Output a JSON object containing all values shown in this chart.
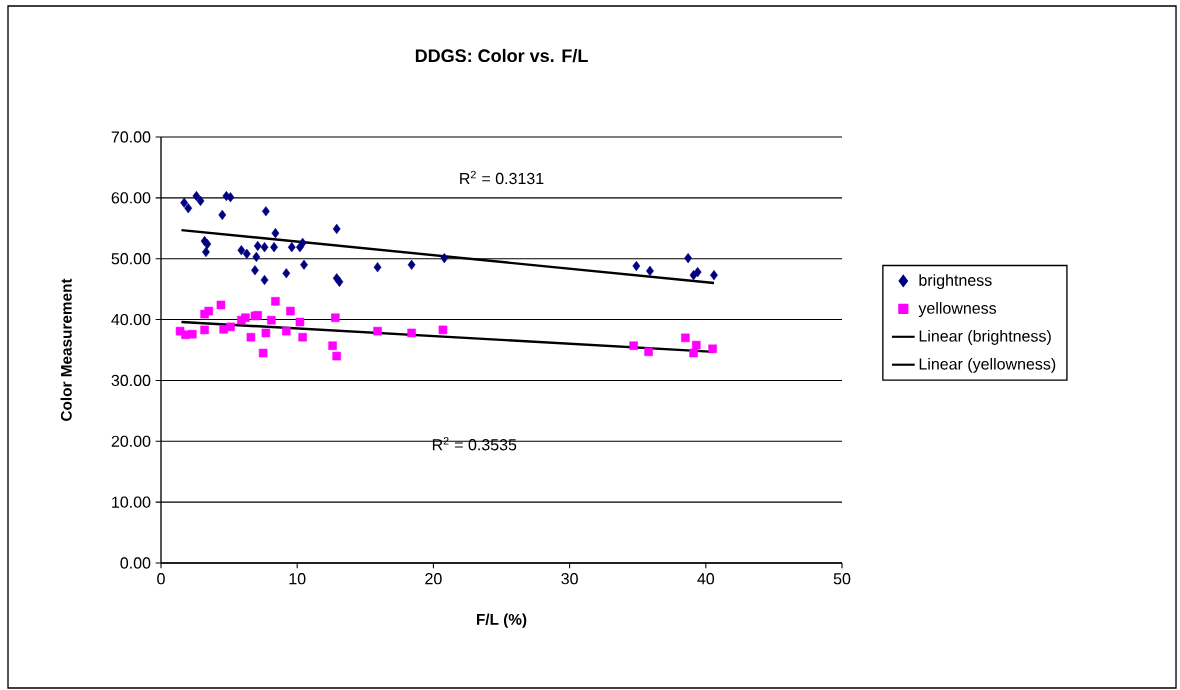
{
  "chart_data": {
    "type": "scatter",
    "title": "DDGS: Color vs. F/L",
    "xlabel": "F/L (%)",
    "ylabel": "Color Measurement",
    "xlim": [
      0,
      50
    ],
    "xticks": [
      0,
      10,
      20,
      30,
      40,
      50
    ],
    "ylim": [
      0,
      70
    ],
    "yticks": [
      {
        "value": 0,
        "label": "0.00"
      },
      {
        "value": 10,
        "label": "10.00"
      },
      {
        "value": 20,
        "label": "20.00"
      },
      {
        "value": 30,
        "label": "30.00"
      },
      {
        "value": 40,
        "label": "40.00"
      },
      {
        "value": 50,
        "label": "50.00"
      },
      {
        "value": 60,
        "label": "60.00"
      },
      {
        "value": 70,
        "label": "70.00"
      }
    ],
    "grid": "y",
    "legend": "right",
    "annotations": [
      "R$^{2}$ = 0.3131",
      "R$^{2}$ = 0.3535"
    ],
    "series": [
      {
        "name": "brightness",
        "color": "#000080",
        "marker": "diamond",
        "x": [
          1.7,
          2.0,
          2.6,
          2.9,
          4.5,
          4.8,
          5.1,
          7.7,
          3.2,
          3.4,
          3.3,
          5.9,
          6.3,
          6.9,
          7.0,
          7.1,
          7.6,
          8.3,
          8.4,
          9.6,
          10.2,
          10.4,
          9.2,
          7.6,
          10.5,
          12.9,
          12.9,
          13.1,
          15.9,
          18.4,
          20.8,
          34.9,
          35.9,
          38.7,
          39.1,
          39.4,
          40.6
        ],
        "values": [
          59.2,
          58.3,
          60.3,
          59.5,
          57.2,
          60.3,
          60.1,
          57.8,
          52.9,
          52.4,
          51.1,
          51.4,
          50.8,
          48.1,
          50.3,
          52.1,
          51.9,
          51.9,
          54.2,
          51.9,
          51.9,
          52.6,
          47.6,
          46.5,
          49.0,
          54.9,
          46.8,
          46.2,
          48.6,
          49.0,
          50.1,
          48.8,
          48.0,
          50.1,
          47.3,
          47.8,
          47.3
        ]
      },
      {
        "name": "yellowness",
        "color": "#ff00ff",
        "marker": "square",
        "x": [
          1.4,
          1.8,
          2.3,
          3.2,
          3.2,
          3.5,
          4.4,
          4.6,
          5.1,
          5.9,
          6.2,
          6.6,
          6.9,
          7.1,
          7.7,
          7.5,
          8.1,
          8.4,
          9.5,
          9.2,
          10.2,
          10.4,
          12.8,
          12.6,
          12.9,
          15.9,
          18.4,
          20.7,
          34.7,
          35.8,
          38.5,
          39.1,
          39.3,
          40.5
        ],
        "values": [
          38.1,
          37.5,
          37.6,
          38.3,
          40.9,
          41.4,
          42.4,
          38.4,
          38.8,
          39.9,
          40.3,
          37.1,
          40.6,
          40.7,
          37.8,
          34.5,
          39.9,
          43.0,
          41.4,
          38.1,
          39.6,
          37.1,
          40.3,
          35.7,
          34.0,
          38.1,
          37.8,
          38.3,
          35.7,
          34.7,
          37.0,
          34.5,
          35.8,
          35.2
        ]
      },
      {
        "name": "Linear (brightness)",
        "type": "line",
        "color": "#000000",
        "marker": "none",
        "line_style": "solid",
        "x": [
          1.5,
          40.6
        ],
        "values": [
          54.7,
          46.0
        ]
      },
      {
        "name": "Linear (yellowness)",
        "type": "line",
        "color": "#000000",
        "marker": "none",
        "line_style": "solid",
        "x": [
          1.5,
          40.6
        ],
        "values": [
          39.6,
          34.7
        ]
      }
    ]
  }
}
